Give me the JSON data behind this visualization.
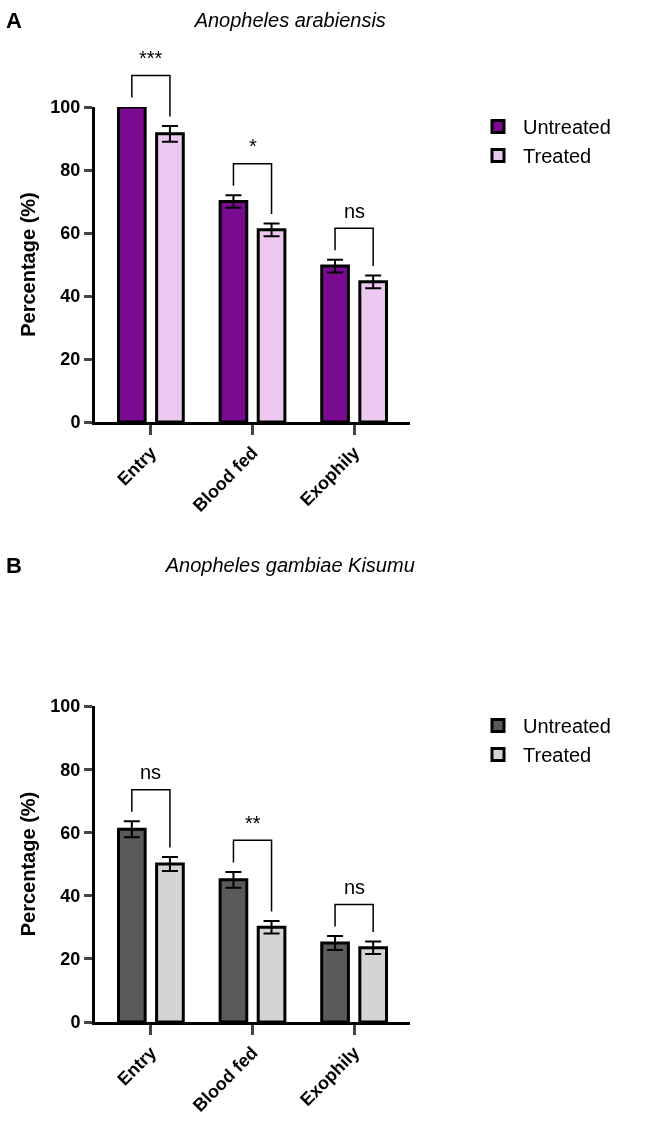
{
  "chart_data": [
    {
      "type": "bar",
      "title": "Anopheles arabiensis",
      "ylabel": "Percentage (%)",
      "categories": [
        "Entry",
        "Blood fed",
        "Exophily"
      ],
      "ylim": [
        0,
        100
      ],
      "yticks": [
        0,
        20,
        40,
        60,
        80,
        100
      ],
      "grid": false,
      "legend": "top right",
      "series": [
        {
          "name": "Untreated",
          "color": "#7a0a8f",
          "values": [
            100,
            70,
            49.5
          ],
          "errors": [
            null,
            2,
            2
          ]
        },
        {
          "name": "Treated",
          "color": "#ecc8f0",
          "values": [
            91.5,
            61,
            44.5
          ],
          "errors": [
            2.5,
            2,
            2
          ]
        }
      ],
      "annotations": [
        "A",
        "***",
        "*",
        "ns"
      ]
    },
    {
      "type": "bar",
      "title": "Anopheles gambiae Kisumu",
      "ylabel": "Percentage (%)",
      "categories": [
        "Entry",
        "Blood fed",
        "Exophily"
      ],
      "ylim": [
        0,
        100
      ],
      "yticks": [
        0,
        20,
        40,
        60,
        80,
        100
      ],
      "grid": false,
      "legend": "top right",
      "series": [
        {
          "name": "Untreated",
          "color": "#5a5a5a",
          "values": [
            61,
            45,
            25
          ],
          "errors": [
            2.5,
            2.5,
            2.2
          ]
        },
        {
          "name": "Treated",
          "color": "#d4d4d4",
          "values": [
            50,
            30,
            23.5
          ],
          "errors": [
            2.2,
            2,
            2
          ]
        }
      ],
      "annotations": [
        "B",
        "ns",
        "**",
        "ns"
      ]
    }
  ]
}
